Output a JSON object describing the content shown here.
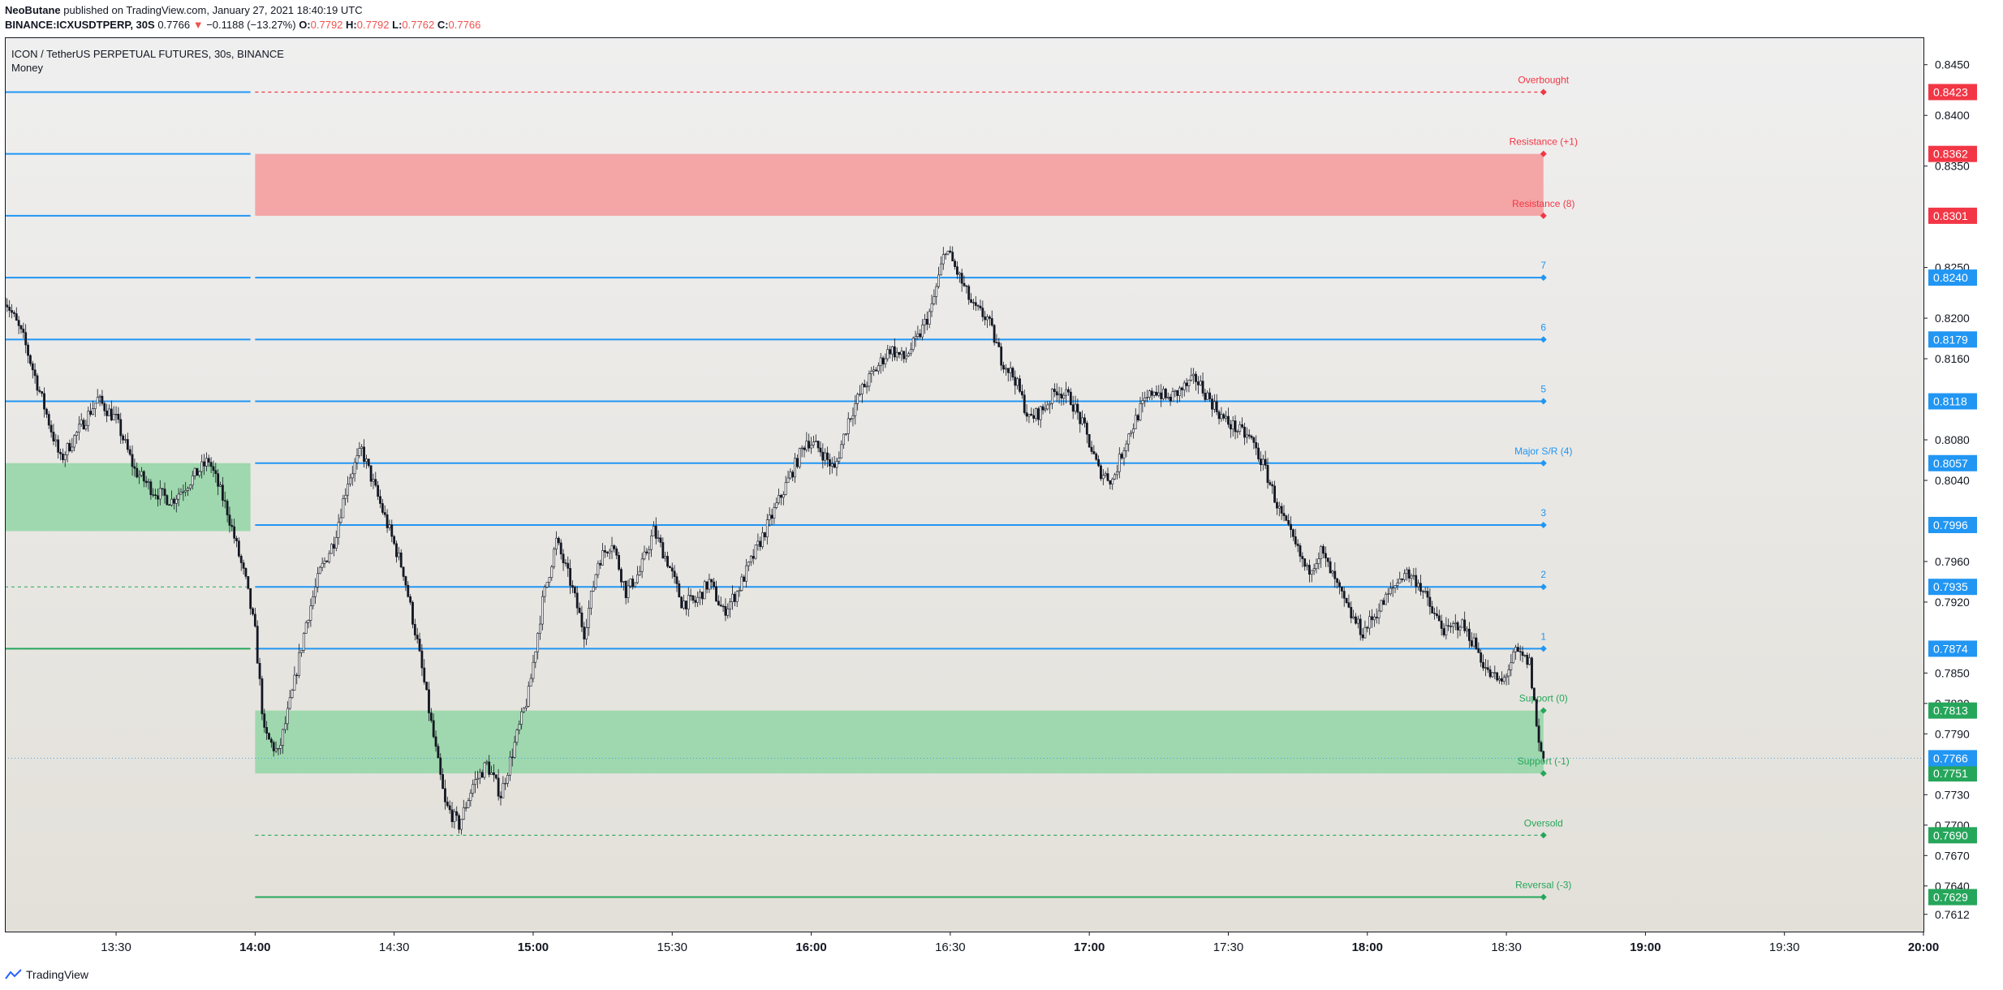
{
  "header": {
    "author": "NeoButane",
    "published_text": "published on TradingView.com, January 27, 2021 18:40:19 UTC",
    "symbol": "BINANCE:ICXUSDTPERP, 30S",
    "last_price": "0.7766",
    "change": "−0.1188 (−13.27%)",
    "o_label": "O:",
    "o_value": "0.7792",
    "h_label": "H:",
    "h_value": "0.7792",
    "l_label": "L:",
    "l_value": "0.7762",
    "c_label": "C:",
    "c_value": "0.7766"
  },
  "legend": {
    "title": "ICON / TetherUS PERPETUAL FUTURES, 30s, BINANCE",
    "indicator": "Money"
  },
  "footer": {
    "brand": "TradingView"
  },
  "colors": {
    "blue": "#2196f3",
    "red": "#f23645",
    "green": "#26a65b",
    "candle": "#131722",
    "zone_red": "#f4a5a6",
    "zone_green": "#9fd8ae"
  },
  "chart_data": {
    "type": "candlestick",
    "y_range": [
      0.7595,
      0.8477
    ],
    "x_range": [
      "13:06",
      "20:00"
    ],
    "y_ticks": [
      "0.8450",
      "0.8400",
      "0.8350",
      "0.8250",
      "0.8200",
      "0.8160",
      "0.8080",
      "0.8040",
      "0.7960",
      "0.7920",
      "0.7850",
      "0.7820",
      "0.7790",
      "0.7730",
      "0.7700",
      "0.7670",
      "0.7640",
      "0.7612"
    ],
    "x_ticks": [
      "13:30",
      "14:00",
      "14:30",
      "15:00",
      "15:30",
      "16:00",
      "16:30",
      "17:00",
      "17:30",
      "18:00",
      "18:30",
      "19:00",
      "19:30",
      "20:00"
    ],
    "x_ticks_bold": [
      "14:00",
      "15:00",
      "16:00",
      "17:00",
      "18:00",
      "19:00",
      "20:00"
    ],
    "last_price_label": "0.7766",
    "levels": [
      {
        "label": "Overbought",
        "price": 0.8423,
        "tag": "0.8423",
        "color": "red",
        "style": "dashed"
      },
      {
        "label": "Resistance (+1)",
        "price": 0.8362,
        "tag": "0.8362",
        "color": "red",
        "style": "zone-edge"
      },
      {
        "label": "Resistance (8)",
        "price": 0.8301,
        "tag": "0.8301",
        "color": "red",
        "style": "zone-edge"
      },
      {
        "label": "7",
        "price": 0.824,
        "tag": "0.8240",
        "color": "blue",
        "style": "solid"
      },
      {
        "label": "6",
        "price": 0.8179,
        "tag": "0.8179",
        "color": "blue",
        "style": "solid"
      },
      {
        "label": "5",
        "price": 0.8118,
        "tag": "0.8118",
        "color": "blue",
        "style": "solid"
      },
      {
        "label": "Major S/R (4)",
        "price": 0.8057,
        "tag": "0.8057",
        "color": "blue",
        "style": "solid"
      },
      {
        "label": "3",
        "price": 0.7996,
        "tag": "0.7996",
        "color": "blue",
        "style": "solid"
      },
      {
        "label": "2",
        "price": 0.7935,
        "tag": "0.7935",
        "color": "blue",
        "style": "solid"
      },
      {
        "label": "1",
        "price": 0.7874,
        "tag": "0.7874",
        "color": "blue",
        "style": "solid"
      },
      {
        "label": "Support (0)",
        "price": 0.7813,
        "tag": "0.7813",
        "color": "green",
        "style": "zone-edge"
      },
      {
        "label": "Support (-1)",
        "price": 0.7751,
        "tag": "0.7751",
        "color": "green",
        "style": "zone-edge"
      },
      {
        "label": "Oversold",
        "price": 0.769,
        "tag": "0.7690",
        "color": "green",
        "style": "dashed"
      },
      {
        "label": "Reversal (-3)",
        "price": 0.7629,
        "tag": "0.7629",
        "color": "green",
        "style": "solid"
      }
    ],
    "zones": [
      {
        "name": "resistance-zone",
        "from_time": "14:00",
        "to_time": "18:38",
        "low": 0.8301,
        "high": 0.8362,
        "color": "zone_red"
      },
      {
        "name": "support-zone",
        "from_time": "14:00",
        "to_time": "18:38",
        "low": 0.7751,
        "high": 0.7813,
        "color": "zone_green"
      },
      {
        "name": "prior-support-zone",
        "from_time": "13:06",
        "to_time": "13:59",
        "low": 0.799,
        "high": 0.8057,
        "color": "zone_green"
      }
    ],
    "prior_levels": [
      {
        "price": 0.8423,
        "color": "blue",
        "style": "solid"
      },
      {
        "price": 0.8362,
        "color": "blue",
        "style": "solid"
      },
      {
        "price": 0.8301,
        "color": "blue",
        "style": "solid"
      },
      {
        "price": 0.824,
        "color": "blue",
        "style": "solid"
      },
      {
        "price": 0.8179,
        "color": "blue",
        "style": "solid"
      },
      {
        "price": 0.8118,
        "color": "blue",
        "style": "solid"
      },
      {
        "price": 0.7935,
        "color": "green",
        "style": "dashed"
      },
      {
        "price": 0.7874,
        "color": "green",
        "style": "solid"
      }
    ],
    "price_path": [
      [
        "13:06",
        0.822
      ],
      [
        "13:10",
        0.818
      ],
      [
        "13:14",
        0.812
      ],
      [
        "13:18",
        0.806
      ],
      [
        "13:22",
        0.809
      ],
      [
        "13:26",
        0.812
      ],
      [
        "13:30",
        0.81
      ],
      [
        "13:34",
        0.805
      ],
      [
        "13:38",
        0.803
      ],
      [
        "13:42",
        0.802
      ],
      [
        "13:46",
        0.804
      ],
      [
        "13:50",
        0.806
      ],
      [
        "13:54",
        0.801
      ],
      [
        "13:58",
        0.794
      ],
      [
        "14:00",
        0.789
      ],
      [
        "14:02",
        0.779
      ],
      [
        "14:05",
        0.777
      ],
      [
        "14:08",
        0.783
      ],
      [
        "14:11",
        0.79
      ],
      [
        "14:14",
        0.795
      ],
      [
        "14:17",
        0.798
      ],
      [
        "14:20",
        0.804
      ],
      [
        "14:23",
        0.807
      ],
      [
        "14:26",
        0.803
      ],
      [
        "14:29",
        0.799
      ],
      [
        "14:32",
        0.795
      ],
      [
        "14:35",
        0.788
      ],
      [
        "14:38",
        0.78
      ],
      [
        "14:41",
        0.772
      ],
      [
        "14:44",
        0.77
      ],
      [
        "14:47",
        0.774
      ],
      [
        "14:50",
        0.776
      ],
      [
        "14:53",
        0.773
      ],
      [
        "14:56",
        0.778
      ],
      [
        "14:59",
        0.783
      ],
      [
        "15:02",
        0.792
      ],
      [
        "15:05",
        0.798
      ],
      [
        "15:08",
        0.794
      ],
      [
        "15:11",
        0.789
      ],
      [
        "15:14",
        0.796
      ],
      [
        "15:17",
        0.798
      ],
      [
        "15:20",
        0.793
      ],
      [
        "15:23",
        0.795
      ],
      [
        "15:26",
        0.799
      ],
      [
        "15:29",
        0.796
      ],
      [
        "15:32",
        0.792
      ],
      [
        "15:35",
        0.792
      ],
      [
        "15:38",
        0.794
      ],
      [
        "15:41",
        0.791
      ],
      [
        "15:44",
        0.793
      ],
      [
        "15:47",
        0.796
      ],
      [
        "15:50",
        0.799
      ],
      [
        "15:53",
        0.802
      ],
      [
        "15:56",
        0.805
      ],
      [
        "15:59",
        0.808
      ],
      [
        "16:02",
        0.807
      ],
      [
        "16:05",
        0.805
      ],
      [
        "16:08",
        0.81
      ],
      [
        "16:11",
        0.813
      ],
      [
        "16:14",
        0.815
      ],
      [
        "16:17",
        0.817
      ],
      [
        "16:20",
        0.816
      ],
      [
        "16:23",
        0.818
      ],
      [
        "16:26",
        0.821
      ],
      [
        "16:29",
        0.827
      ],
      [
        "16:32",
        0.824
      ],
      [
        "16:35",
        0.821
      ],
      [
        "16:38",
        0.82
      ],
      [
        "16:41",
        0.816
      ],
      [
        "16:44",
        0.814
      ],
      [
        "16:47",
        0.81
      ],
      [
        "16:50",
        0.811
      ],
      [
        "16:53",
        0.813
      ],
      [
        "16:56",
        0.812
      ],
      [
        "16:59",
        0.809
      ],
      [
        "17:02",
        0.805
      ],
      [
        "17:05",
        0.804
      ],
      [
        "17:08",
        0.808
      ],
      [
        "17:11",
        0.811
      ],
      [
        "17:14",
        0.813
      ],
      [
        "17:17",
        0.812
      ],
      [
        "17:20",
        0.813
      ],
      [
        "17:23",
        0.814
      ],
      [
        "17:26",
        0.812
      ],
      [
        "17:29",
        0.81
      ],
      [
        "17:32",
        0.809
      ],
      [
        "17:35",
        0.808
      ],
      [
        "17:38",
        0.805
      ],
      [
        "17:41",
        0.801
      ],
      [
        "17:44",
        0.798
      ],
      [
        "17:47",
        0.795
      ],
      [
        "17:50",
        0.797
      ],
      [
        "17:53",
        0.794
      ],
      [
        "17:56",
        0.791
      ],
      [
        "17:59",
        0.789
      ],
      [
        "18:02",
        0.791
      ],
      [
        "18:05",
        0.793
      ],
      [
        "18:08",
        0.795
      ],
      [
        "18:11",
        0.794
      ],
      [
        "18:14",
        0.791
      ],
      [
        "18:17",
        0.789
      ],
      [
        "18:20",
        0.79
      ],
      [
        "18:23",
        0.788
      ],
      [
        "18:26",
        0.785
      ],
      [
        "18:29",
        0.784
      ],
      [
        "18:32",
        0.787
      ],
      [
        "18:35",
        0.786
      ],
      [
        "18:37",
        0.778
      ],
      [
        "18:38",
        0.7766
      ]
    ]
  }
}
